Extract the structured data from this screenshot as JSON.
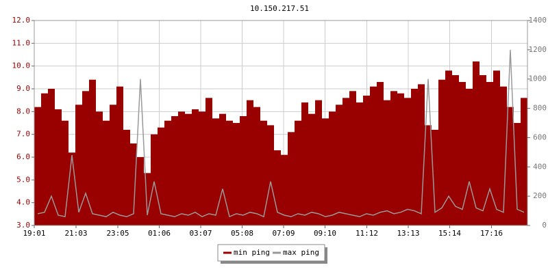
{
  "chart_data": {
    "type": "ping",
    "title": "10.150.217.51",
    "x": [
      0,
      20,
      40,
      60,
      80,
      100,
      120,
      140,
      160,
      180,
      200,
      220,
      240,
      260,
      280,
      300,
      320,
      340,
      360,
      380,
      400,
      420,
      440,
      460,
      480,
      500,
      520,
      540,
      560,
      580,
      600,
      620,
      640,
      660,
      680,
      700,
      720,
      740,
      760,
      780,
      800,
      820,
      840,
      860,
      880,
      900,
      920,
      940,
      960,
      980,
      1000,
      1020,
      1040,
      1060,
      1080,
      1100,
      1120,
      1140,
      1160,
      1180,
      1200,
      1220,
      1240,
      1260,
      1280,
      1300,
      1320,
      1340,
      1360,
      1380,
      1400,
      1420
    ],
    "xlim": [
      0,
      1440
    ],
    "xticks": [
      {
        "value": 0,
        "label": "19:01"
      },
      {
        "value": 122,
        "label": "21:03"
      },
      {
        "value": 244,
        "label": "23:05"
      },
      {
        "value": 365,
        "label": "01:06"
      },
      {
        "value": 486,
        "label": "03:07"
      },
      {
        "value": 607,
        "label": "05:08"
      },
      {
        "value": 728,
        "label": "07:09"
      },
      {
        "value": 849,
        "label": "09:10"
      },
      {
        "value": 971,
        "label": "11:12"
      },
      {
        "value": 1092,
        "label": "13:13"
      },
      {
        "value": 1213,
        "label": "15:14"
      },
      {
        "value": 1335,
        "label": "17:16"
      }
    ],
    "ylim": [
      3,
      12
    ],
    "yticks": [
      {
        "value": 3,
        "label": "3.0"
      },
      {
        "value": 4,
        "label": "4.0"
      },
      {
        "value": 5,
        "label": "5.0"
      },
      {
        "value": 6,
        "label": "6.0"
      },
      {
        "value": 7,
        "label": "7.0"
      },
      {
        "value": 8,
        "label": "8.0"
      },
      {
        "value": 9,
        "label": "9.0"
      },
      {
        "value": 10,
        "label": "10.0"
      },
      {
        "value": 11,
        "label": "11.0"
      },
      {
        "value": 12,
        "label": "12.0"
      }
    ],
    "y2lim": [
      0,
      1400
    ],
    "y2ticks": [
      0,
      200,
      400,
      600,
      800,
      1000,
      1200,
      1400
    ],
    "grid": true,
    "series": [
      {
        "name": "min ping",
        "color": "#990000",
        "values": [
          8.2,
          8.8,
          9.0,
          8.1,
          7.6,
          6.2,
          8.3,
          8.9,
          9.4,
          8.0,
          7.6,
          8.3,
          9.1,
          7.2,
          6.6,
          6.0,
          5.3,
          7.0,
          7.3,
          7.6,
          7.8,
          8.0,
          7.9,
          8.1,
          8.0,
          8.6,
          7.7,
          7.9,
          7.6,
          7.5,
          7.8,
          8.5,
          8.2,
          7.6,
          7.4,
          6.3,
          6.1,
          7.1,
          7.6,
          8.4,
          7.9,
          8.5,
          7.7,
          8.0,
          8.3,
          8.6,
          8.9,
          8.4,
          8.7,
          9.1,
          9.3,
          8.5,
          8.9,
          8.8,
          8.6,
          9.0,
          9.2,
          7.4,
          7.2,
          9.4,
          9.8,
          9.6,
          9.3,
          9.0,
          10.2,
          9.6,
          9.3,
          9.8,
          9.1,
          8.2,
          7.5,
          8.6
        ]
      },
      {
        "name": "max ping",
        "color": "#999999",
        "axis": "y2",
        "values": [
          80,
          90,
          200,
          70,
          60,
          480,
          90,
          220,
          80,
          70,
          60,
          90,
          70,
          60,
          80,
          1000,
          70,
          300,
          80,
          70,
          60,
          80,
          70,
          90,
          60,
          80,
          70,
          250,
          60,
          80,
          70,
          90,
          80,
          60,
          300,
          90,
          70,
          60,
          80,
          70,
          90,
          80,
          60,
          70,
          90,
          80,
          70,
          60,
          80,
          70,
          90,
          100,
          80,
          90,
          110,
          100,
          80,
          1000,
          90,
          120,
          200,
          130,
          110,
          300,
          120,
          100,
          250,
          110,
          90,
          1200,
          110,
          90
        ]
      }
    ]
  }
}
